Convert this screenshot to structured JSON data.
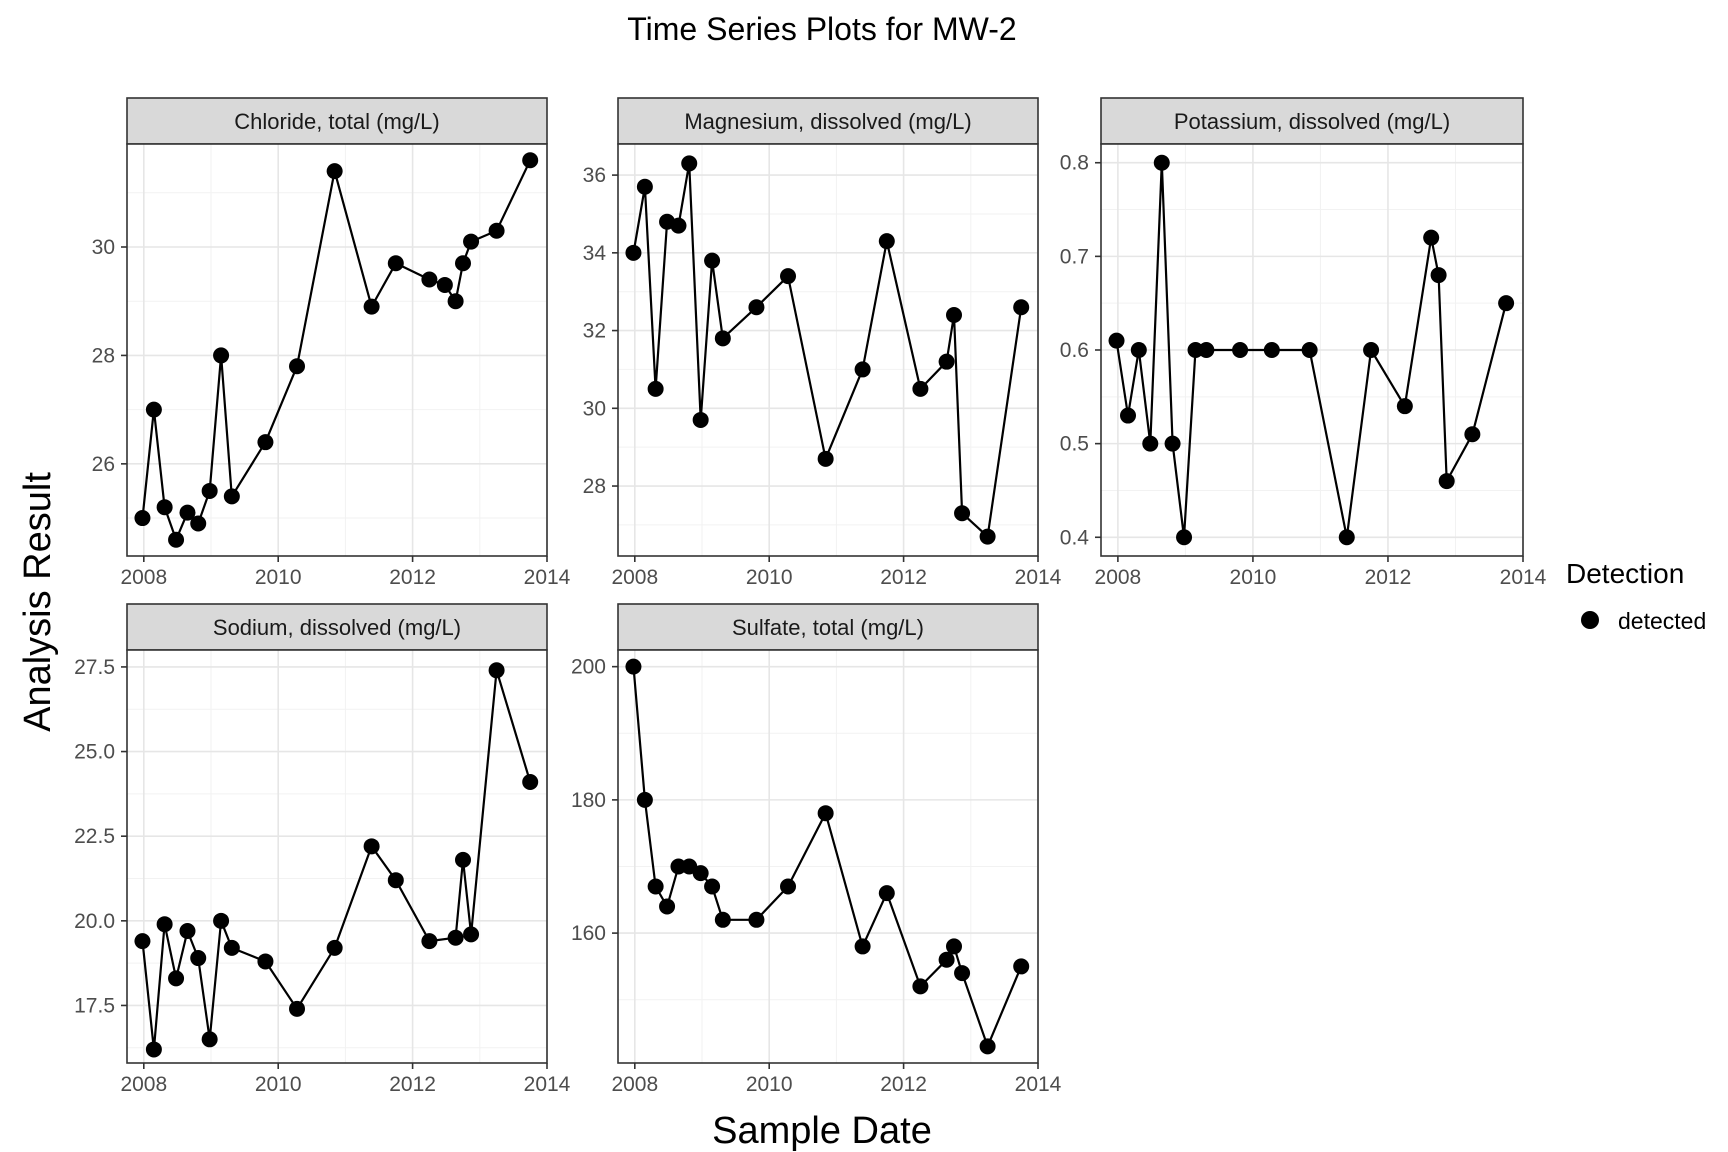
{
  "title": "Time Series Plots for MW-2",
  "xlabel": "Sample Date",
  "ylabel": "Analysis Result",
  "legend": {
    "title": "Detection",
    "entries": [
      "detected"
    ],
    "placement": "right"
  },
  "chart_data": {
    "type": "line",
    "grid": true,
    "xlim": [
      2007.75,
      2014.0
    ],
    "x_ticks": [
      "2008",
      "2010",
      "2012",
      "2014"
    ],
    "panels": [
      {
        "strip": "Chloride, total (mg/L)",
        "ylim": [
          24.3,
          31.9
        ],
        "y_ticks": [
          26,
          28,
          30
        ],
        "y_tick_labels": [
          "26",
          "28",
          "30"
        ],
        "series": [
          {
            "name": "detected",
            "x": [
              2007.98,
              2008.15,
              2008.31,
              2008.48,
              2008.65,
              2008.81,
              2008.98,
              2009.15,
              2009.31,
              2009.81,
              2010.28,
              2010.84,
              2011.39,
              2011.75,
              2012.25,
              2012.48,
              2012.64,
              2012.75,
              2012.87,
              2013.25,
              2013.75
            ],
            "y": [
              25.0,
              27.0,
              25.2,
              24.6,
              25.1,
              24.9,
              25.5,
              28.0,
              25.4,
              26.4,
              27.8,
              31.4,
              28.9,
              29.7,
              29.4,
              29.3,
              29.0,
              29.7,
              30.1,
              30.3,
              31.6
            ]
          }
        ]
      },
      {
        "strip": "Magnesium, dissolved (mg/L)",
        "ylim": [
          26.2,
          36.8
        ],
        "y_ticks": [
          28,
          30,
          32,
          34,
          36
        ],
        "y_tick_labels": [
          "28",
          "30",
          "32",
          "34",
          "36"
        ],
        "series": [
          {
            "name": "detected",
            "x": [
              2007.98,
              2008.15,
              2008.31,
              2008.48,
              2008.65,
              2008.81,
              2008.98,
              2009.15,
              2009.31,
              2009.81,
              2010.28,
              2010.84,
              2011.39,
              2011.75,
              2012.25,
              2012.64,
              2012.75,
              2012.87,
              2013.25,
              2013.75
            ],
            "y": [
              34.0,
              35.7,
              30.5,
              34.8,
              34.7,
              36.3,
              29.7,
              33.8,
              31.8,
              32.6,
              33.4,
              28.7,
              31.0,
              34.3,
              30.5,
              31.2,
              32.4,
              27.3,
              26.7,
              32.6
            ]
          }
        ]
      },
      {
        "strip": "Potassium, dissolved (mg/L)",
        "ylim": [
          0.38,
          0.82
        ],
        "y_ticks": [
          0.4,
          0.5,
          0.6,
          0.7,
          0.8
        ],
        "y_tick_labels": [
          "0.4",
          "0.5",
          "0.6",
          "0.7",
          "0.8"
        ],
        "series": [
          {
            "name": "detected",
            "x": [
              2007.98,
              2008.15,
              2008.31,
              2008.48,
              2008.65,
              2008.81,
              2008.98,
              2009.15,
              2009.31,
              2009.81,
              2010.28,
              2010.84,
              2011.39,
              2011.75,
              2012.25,
              2012.64,
              2012.75,
              2012.87,
              2013.25,
              2013.75
            ],
            "y": [
              0.61,
              0.53,
              0.6,
              0.5,
              0.8,
              0.5,
              0.4,
              0.6,
              0.6,
              0.6,
              0.6,
              0.6,
              0.4,
              0.6,
              0.54,
              0.72,
              0.68,
              0.46,
              0.51,
              0.65
            ]
          }
        ]
      },
      {
        "strip": "Sodium, dissolved (mg/L)",
        "ylim": [
          15.8,
          28.0
        ],
        "y_ticks": [
          17.5,
          20.0,
          22.5,
          25.0,
          27.5
        ],
        "y_tick_labels": [
          "17.5",
          "20.0",
          "22.5",
          "25.0",
          "27.5"
        ],
        "series": [
          {
            "name": "detected",
            "x": [
              2007.98,
              2008.15,
              2008.31,
              2008.48,
              2008.65,
              2008.81,
              2008.98,
              2009.15,
              2009.31,
              2009.81,
              2010.28,
              2010.84,
              2011.39,
              2011.75,
              2012.25,
              2012.64,
              2012.75,
              2012.87,
              2013.25,
              2013.75
            ],
            "y": [
              19.4,
              16.2,
              19.9,
              18.3,
              19.7,
              18.9,
              16.5,
              20.0,
              19.2,
              18.8,
              17.4,
              19.2,
              22.2,
              21.2,
              19.4,
              19.5,
              21.8,
              19.6,
              27.4,
              24.1
            ]
          }
        ]
      },
      {
        "strip": "Sulfate, total (mg/L)",
        "ylim": [
          140.5,
          202.5
        ],
        "y_ticks": [
          160,
          180,
          200
        ],
        "y_tick_labels": [
          "160",
          "180",
          "200"
        ],
        "series": [
          {
            "name": "detected",
            "x": [
              2007.98,
              2008.15,
              2008.31,
              2008.48,
              2008.65,
              2008.81,
              2008.98,
              2009.15,
              2009.31,
              2009.81,
              2010.28,
              2010.84,
              2011.39,
              2011.75,
              2012.25,
              2012.64,
              2012.75,
              2012.87,
              2013.25,
              2013.75
            ],
            "y": [
              200,
              180,
              167,
              164,
              170,
              170,
              169,
              167,
              162,
              162,
              167,
              178,
              158,
              166,
              152,
              156,
              158,
              154,
              143,
              155
            ]
          }
        ]
      }
    ]
  }
}
